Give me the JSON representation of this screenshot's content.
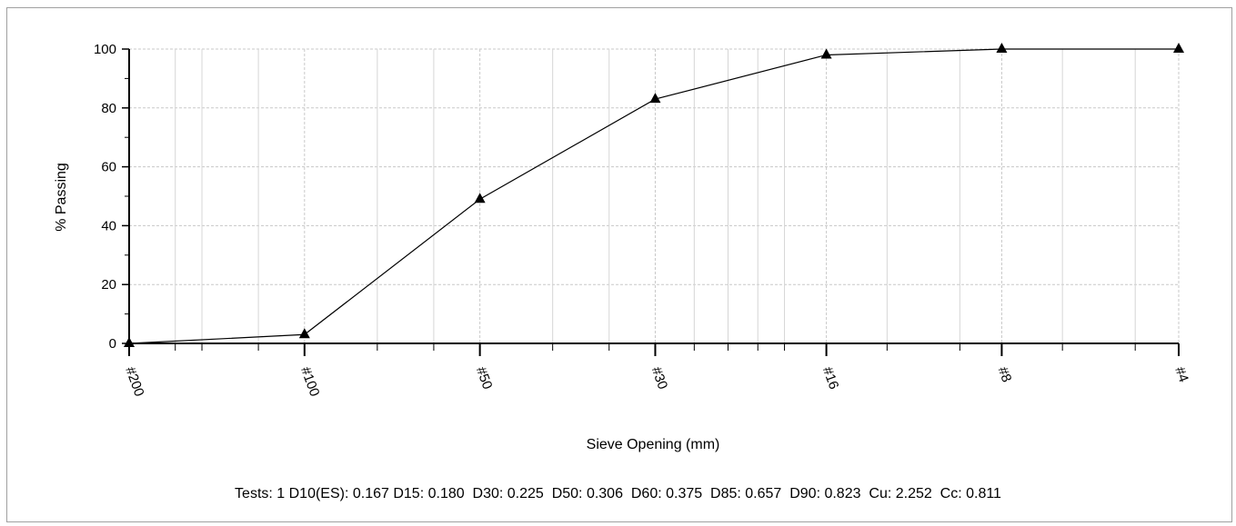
{
  "chart_data": {
    "type": "line",
    "title": "",
    "xlabel": "Sieve Opening (mm)",
    "ylabel": "% Passing",
    "x_scale": "log",
    "ylim": [
      0,
      100
    ],
    "yticks": [
      0,
      20,
      40,
      60,
      80,
      100
    ],
    "grid": true,
    "marker": "triangle",
    "x_tick_labels": [
      "#200",
      "#100",
      "#50",
      "#30",
      "#16",
      "#8",
      "#4"
    ],
    "sieve_sizes_mm": [
      0.075,
      0.15,
      0.3,
      0.6,
      1.18,
      2.36,
      4.75
    ],
    "x_minor_lines_mm": [
      0.09,
      0.1,
      0.125,
      0.2,
      0.25,
      0.4,
      0.5,
      0.7,
      0.8,
      0.9,
      1.0,
      1.5,
      2.0,
      3.0,
      4.0
    ],
    "series": [
      {
        "x": [
          "#200",
          "#100",
          "#50",
          "#30",
          "#16",
          "#8",
          "#4"
        ],
        "values": [
          0,
          3,
          49,
          83,
          98,
          100,
          100
        ]
      }
    ]
  },
  "stats_text": "Tests: 1 D10(ES): 0.167 D15: 0.180  D30: 0.225  D50: 0.306  D60: 0.375  D85: 0.657  D90: 0.823  Cu: 2.252  Cc: 0.811"
}
